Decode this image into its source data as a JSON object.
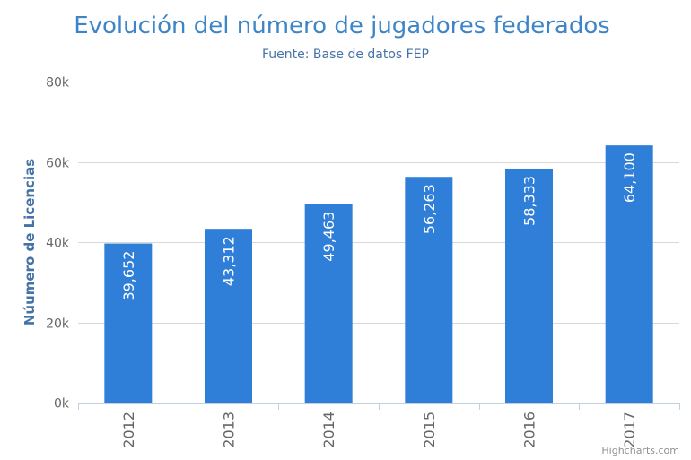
{
  "chart_data": {
    "type": "bar",
    "title": "Evolución del número de jugadores federados",
    "subtitle": "Fuente: Base de datos FEP",
    "ylabel": "Núumero de Licencias",
    "xlabel": "",
    "categories": [
      "2012",
      "2013",
      "2014",
      "2015",
      "2016",
      "2017"
    ],
    "values": [
      39652,
      43312,
      49463,
      56263,
      58333,
      64100
    ],
    "data_labels": [
      "39,652",
      "43,312",
      "49,463",
      "56,263",
      "58,333",
      "64,100"
    ],
    "ylim": [
      0,
      80000
    ],
    "yticks": [
      0,
      20000,
      40000,
      60000,
      80000
    ],
    "ytick_labels": [
      "0k",
      "20k",
      "40k",
      "60k",
      "80k"
    ],
    "grid": true,
    "legend": "none",
    "credits": "Highcharts.com",
    "colors": {
      "bar": "#2f7ed8",
      "title": "#3d85c6",
      "ylabel": "#4572a7",
      "text": "#666666",
      "gridline": "#d8d8d8",
      "axis": "#c0d0e0",
      "data_label": "#ffffff"
    }
  }
}
